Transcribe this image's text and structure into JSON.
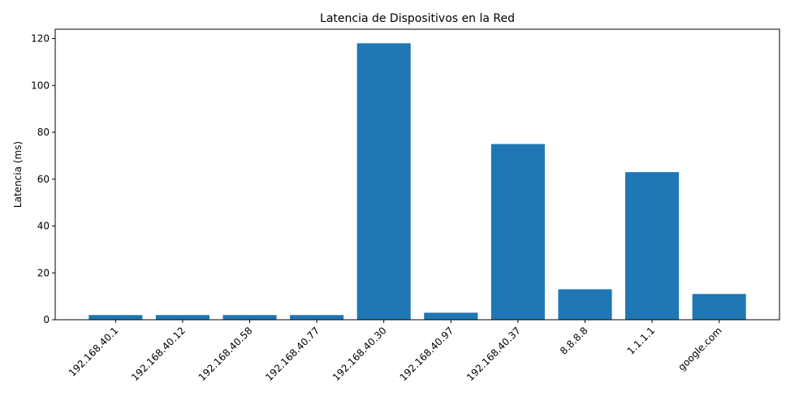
{
  "chart_data": {
    "type": "bar",
    "title": "Latencia de Dispositivos en la Red",
    "xlabel": "",
    "ylabel": "Latencia (ms)",
    "categories": [
      "192.168.40.1",
      "192.168.40.12",
      "192.168.40.58",
      "192.168.40.77",
      "192.168.40.30",
      "192.168.40.97",
      "192.168.40.37",
      "8.8.8.8",
      "1.1.1.1",
      "google.com"
    ],
    "values": [
      2,
      2,
      2,
      2,
      118,
      3,
      75,
      13,
      63,
      11
    ],
    "ylim": [
      0,
      124
    ],
    "yticks": [
      0,
      20,
      40,
      60,
      80,
      100,
      120
    ],
    "grid": false,
    "bar_color": "#1f77b4"
  }
}
